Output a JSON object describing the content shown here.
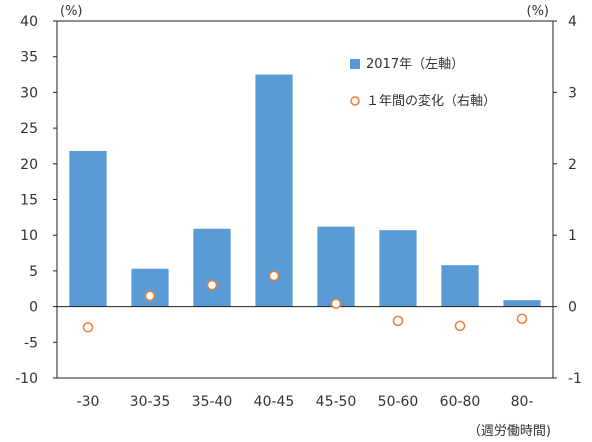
{
  "chart_data": {
    "type": "bar",
    "categories": [
      "-30",
      "30-35",
      "35-40",
      "40-45",
      "45-50",
      "50-60",
      "60-80",
      "80-"
    ],
    "series": [
      {
        "name": "2017年（左軸）",
        "type": "bar",
        "axis": "left",
        "values": [
          21.8,
          5.3,
          10.9,
          32.5,
          11.2,
          10.7,
          5.8,
          0.9
        ],
        "color": "#5b9bd5"
      },
      {
        "name": "１年間の変化（右軸）",
        "type": "scatter",
        "axis": "right",
        "values": [
          -0.29,
          0.15,
          0.3,
          0.43,
          0.04,
          -0.2,
          -0.27,
          -0.17
        ],
        "color": "#ed7d31"
      }
    ],
    "y_left": {
      "range": [
        -10,
        40
      ],
      "ticks": [
        "40",
        "35",
        "30",
        "25",
        "20",
        "15",
        "10",
        "5",
        "0",
        "-5",
        "-10"
      ],
      "unit": "(%)"
    },
    "y_right": {
      "range": [
        -1,
        4
      ],
      "ticks": [
        "4",
        "3",
        "2",
        "1",
        "0",
        "-1"
      ],
      "unit": "(%)"
    },
    "xlabel": "（週労働時間)",
    "negative_tick_color": "#e03030",
    "grid": false,
    "legend_position": "top-right"
  }
}
